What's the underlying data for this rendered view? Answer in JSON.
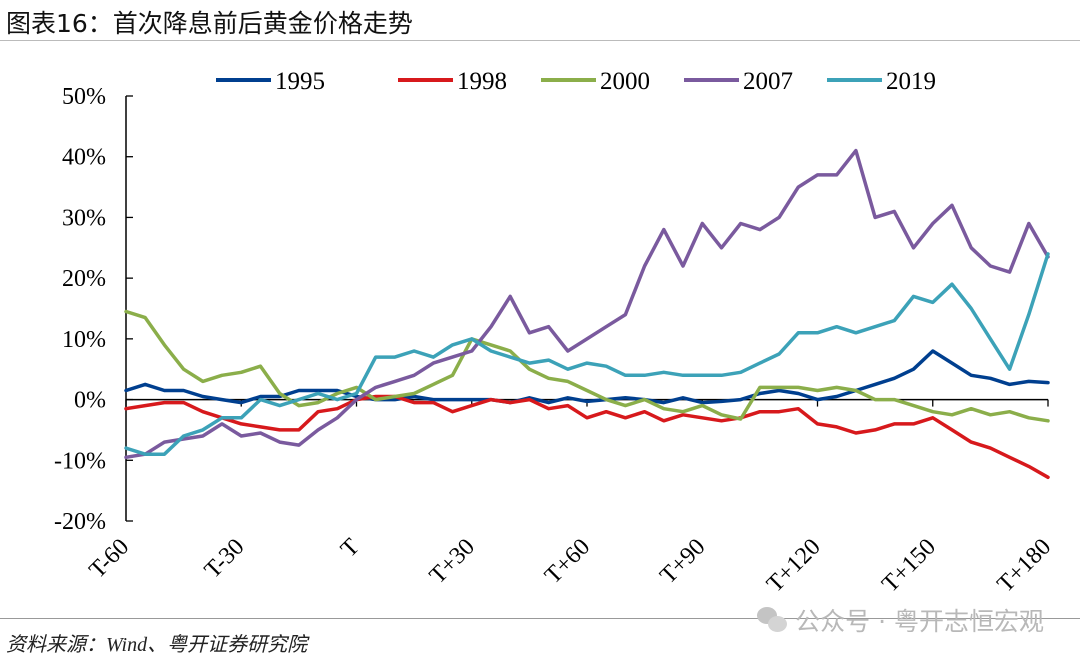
{
  "title": "图表16：首次降息前后黄金价格走势",
  "source": "资料来源：Wind、粤开证券研究院",
  "watermark": "公众号 · 粤开志恒宏观",
  "chart_data": {
    "type": "line",
    "title": "图表16：首次降息前后黄金价格走势",
    "xlabel": "",
    "ylabel": "",
    "x": [
      -60,
      -55,
      -50,
      -45,
      -40,
      -35,
      -30,
      -25,
      -20,
      -15,
      -10,
      -5,
      0,
      5,
      10,
      15,
      20,
      25,
      30,
      35,
      40,
      45,
      50,
      55,
      60,
      65,
      70,
      75,
      80,
      85,
      90,
      95,
      100,
      105,
      110,
      115,
      120,
      125,
      130,
      135,
      140,
      145,
      150,
      155,
      160,
      165,
      170,
      175,
      180
    ],
    "xticks": [
      -60,
      -30,
      0,
      30,
      60,
      90,
      120,
      150,
      180
    ],
    "xtick_labels": [
      "T-60",
      "T-30",
      "T",
      "T+30",
      "T+60",
      "T+90",
      "T+120",
      "T+150",
      "T+180"
    ],
    "xlim": [
      -60,
      180
    ],
    "ylim": [
      -20,
      50
    ],
    "yticks": [
      -20,
      -10,
      0,
      10,
      20,
      30,
      40,
      50
    ],
    "ytick_labels": [
      "-20%",
      "-10%",
      "0%",
      "10%",
      "20%",
      "30%",
      "40%",
      "50%"
    ],
    "legend": "top",
    "grid": false,
    "series": [
      {
        "name": "1995",
        "color": "#003F8F",
        "values": [
          1.5,
          2.5,
          1.5,
          1.5,
          0.5,
          0,
          -0.5,
          0.5,
          0.5,
          1.5,
          1.5,
          1.5,
          0.5,
          0,
          0,
          0.5,
          0,
          0,
          0,
          0,
          -0.5,
          0.3,
          -0.5,
          0.3,
          -0.3,
          0,
          0.3,
          0,
          -0.5,
          0.3,
          -0.5,
          -0.3,
          0,
          1,
          1.5,
          1,
          0,
          0.5,
          1.5,
          2.5,
          3.5,
          5,
          8,
          6,
          4,
          3.5,
          2.5,
          3,
          2.8
        ]
      },
      {
        "name": "1998",
        "color": "#D7191C",
        "values": [
          -1.5,
          -1,
          -0.5,
          -0.5,
          -2,
          -3,
          -4,
          -4.5,
          -5,
          -5,
          -2,
          -1.5,
          0,
          0.5,
          0.5,
          -0.5,
          -0.5,
          -2,
          -1,
          0,
          -0.5,
          0,
          -1.5,
          -1,
          -3,
          -2,
          -3,
          -2,
          -3.5,
          -2.5,
          -3,
          -3.5,
          -3,
          -2,
          -2,
          -1.5,
          -4,
          -4.5,
          -5.5,
          -5,
          -4,
          -4,
          -3,
          -5,
          -7,
          -8,
          -9.5,
          -11,
          -12.8
        ]
      },
      {
        "name": "2000",
        "color": "#8BAE4A",
        "values": [
          14.5,
          13.5,
          9,
          5,
          3,
          4,
          4.5,
          5.5,
          1,
          -1,
          -0.5,
          1,
          2,
          0,
          0.5,
          1,
          2.5,
          4,
          10,
          9,
          8,
          5,
          3.5,
          3,
          1.5,
          0,
          -1,
          0,
          -1.5,
          -2,
          -1,
          -2.5,
          -3.2,
          2,
          2,
          2,
          1.5,
          2,
          1.5,
          0,
          0,
          -1,
          -2,
          -2.5,
          -1.5,
          -2.5,
          -2,
          -3,
          -3.5
        ]
      },
      {
        "name": "2007",
        "color": "#7A5A9E",
        "values": [
          -9.5,
          -9,
          -7,
          -6.5,
          -6,
          -4,
          -6,
          -5.5,
          -7,
          -7.5,
          -5,
          -3,
          0,
          2,
          3,
          4,
          6,
          7,
          8,
          12,
          17,
          11,
          12,
          8,
          10,
          12,
          14,
          22,
          28,
          22,
          29,
          25,
          29,
          28,
          30,
          35,
          37,
          37,
          41,
          30,
          31,
          25,
          29,
          32,
          25,
          22,
          21,
          29,
          23.5
        ]
      },
      {
        "name": "2019",
        "color": "#3CA2B8",
        "values": [
          -8,
          -9,
          -9,
          -6,
          -5,
          -3,
          -3,
          0,
          -1,
          0,
          1,
          0,
          1,
          7,
          7,
          8,
          7,
          9,
          10,
          8,
          7,
          6,
          6.5,
          5,
          6,
          5.5,
          4,
          4,
          4.5,
          4,
          4,
          4,
          4.5,
          6,
          7.5,
          11,
          11,
          12,
          11,
          12,
          13,
          17,
          16,
          19,
          15,
          10,
          5,
          14,
          24
        ]
      }
    ]
  }
}
